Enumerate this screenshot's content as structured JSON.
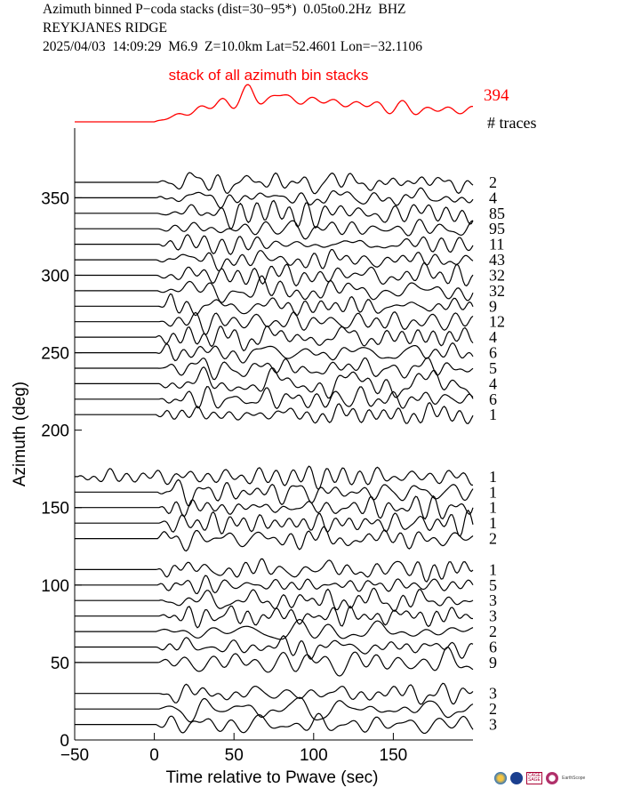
{
  "header": {
    "line1": "Azimuth binned P−coda stacks (dist=30−95*)  0.05to0.2Hz  BHZ",
    "line2": "REYKJANES RIDGE",
    "line3": "2025/04/03  14:09:29  M6.9  Z=10.0km Lat=52.4601 Lon=−32.1106"
  },
  "chart_data": {
    "type": "line",
    "title": "Azimuth binned P−coda stacks (dist=30−95*)  0.05to0.2Hz  BHZ",
    "xlabel": "Time relative to Pwave (sec)",
    "ylabel": "Azimuth (deg)",
    "xlim": [
      -50,
      200
    ],
    "ylim": [
      0,
      395
    ],
    "x_ticks": [
      -50,
      0,
      50,
      100,
      150
    ],
    "y_ticks": [
      0,
      50,
      100,
      150,
      200,
      250,
      300,
      350
    ],
    "stack": {
      "label": "stack of all azimuth bin stacks",
      "count": "394",
      "color": "#ff0000"
    },
    "count_header": "# traces",
    "trace_color": "#000000",
    "traces": [
      {
        "azimuth": 360,
        "count": "2"
      },
      {
        "azimuth": 350,
        "count": "4"
      },
      {
        "azimuth": 340,
        "count": "85"
      },
      {
        "azimuth": 330,
        "count": "95"
      },
      {
        "azimuth": 320,
        "count": "11"
      },
      {
        "azimuth": 310,
        "count": "43"
      },
      {
        "azimuth": 300,
        "count": "32"
      },
      {
        "azimuth": 290,
        "count": "32"
      },
      {
        "azimuth": 280,
        "count": "9"
      },
      {
        "azimuth": 270,
        "count": "12"
      },
      {
        "azimuth": 260,
        "count": "4"
      },
      {
        "azimuth": 250,
        "count": "6"
      },
      {
        "azimuth": 240,
        "count": "5"
      },
      {
        "azimuth": 230,
        "count": "4"
      },
      {
        "azimuth": 220,
        "count": "6"
      },
      {
        "azimuth": 210,
        "count": "1"
      },
      {
        "azimuth": 170,
        "count": "1"
      },
      {
        "azimuth": 160,
        "count": "1"
      },
      {
        "azimuth": 150,
        "count": "1"
      },
      {
        "azimuth": 140,
        "count": "1"
      },
      {
        "azimuth": 130,
        "count": "2"
      },
      {
        "azimuth": 110,
        "count": "1"
      },
      {
        "azimuth": 100,
        "count": "5"
      },
      {
        "azimuth": 90,
        "count": "3"
      },
      {
        "azimuth": 80,
        "count": "3"
      },
      {
        "azimuth": 70,
        "count": "2"
      },
      {
        "azimuth": 60,
        "count": "6"
      },
      {
        "azimuth": 50,
        "count": "9"
      },
      {
        "azimuth": 30,
        "count": "3"
      },
      {
        "azimuth": 20,
        "count": "2"
      },
      {
        "azimuth": 10,
        "count": "3"
      }
    ]
  }
}
